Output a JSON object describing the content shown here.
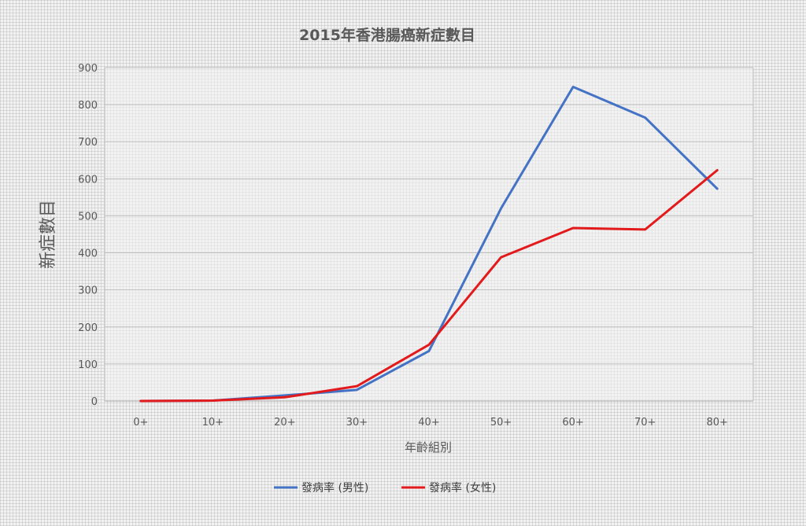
{
  "chart_data": {
    "type": "line",
    "title": "2015年香港腸癌新症數目",
    "xlabel": "年齡組別",
    "ylabel": "新症數目",
    "categories": [
      "0+",
      "10+",
      "20+",
      "30+",
      "40+",
      "50+",
      "60+",
      "70+",
      "80+"
    ],
    "ylim": [
      0,
      900
    ],
    "yticks": [
      0,
      100,
      200,
      300,
      400,
      500,
      600,
      700,
      800,
      900
    ],
    "grid": true,
    "legend_position": "bottom",
    "series": [
      {
        "name": "發病率 (男性)",
        "color": "#4472c4",
        "values": [
          0,
          1,
          15,
          30,
          135,
          520,
          848,
          765,
          573
        ]
      },
      {
        "name": "發病率 (女性)",
        "color": "#e31a1c",
        "values": [
          0,
          1,
          10,
          40,
          152,
          388,
          467,
          463,
          623
        ]
      }
    ]
  }
}
